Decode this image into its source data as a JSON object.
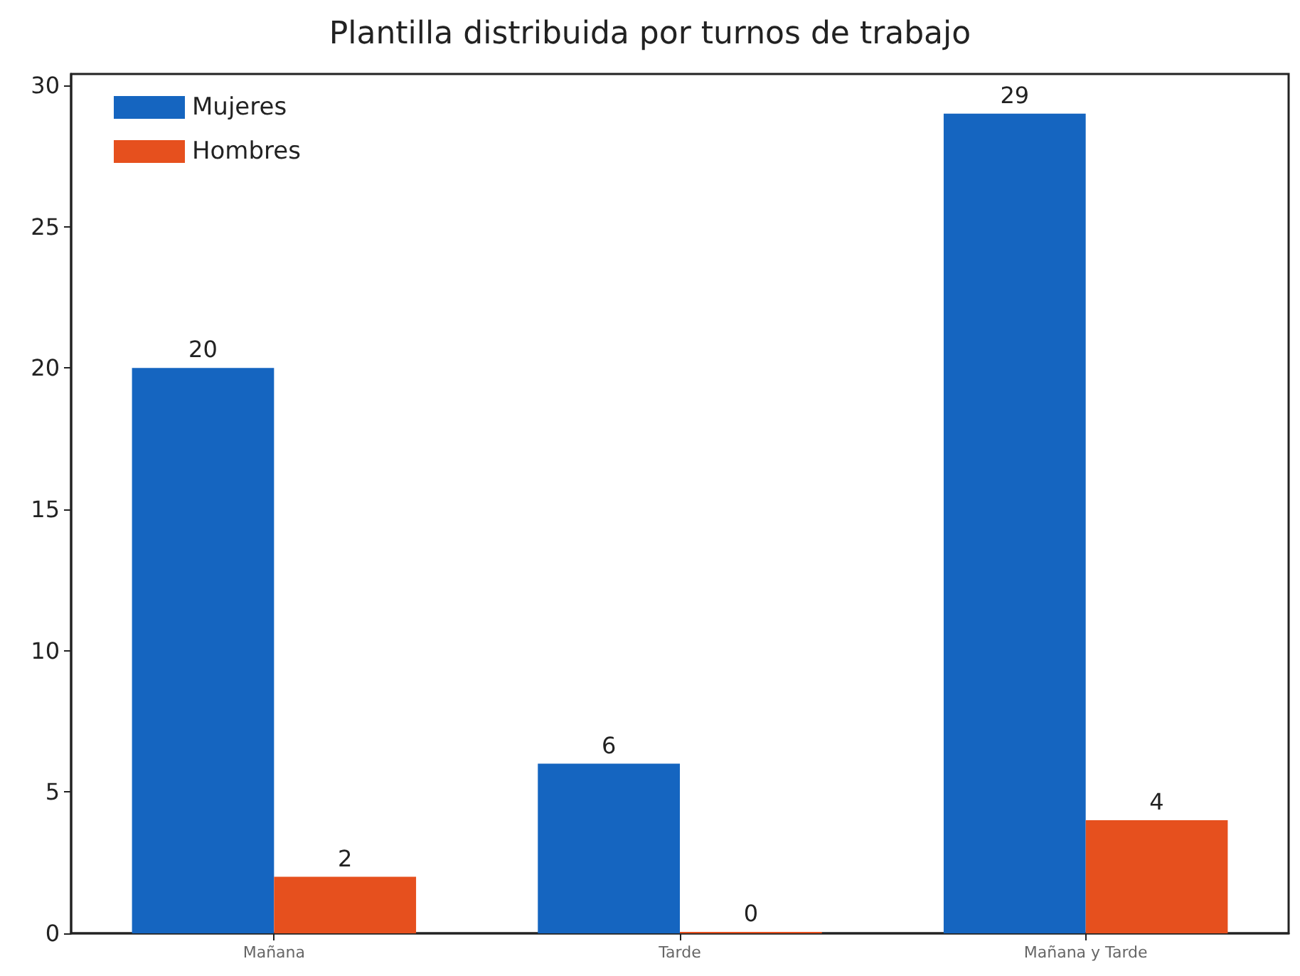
{
  "chart_data": {
    "type": "bar",
    "title": "Plantilla distribuida por turnos de trabajo",
    "categories": [
      "Mañana",
      "Tarde",
      "Mañana y Tarde"
    ],
    "series": [
      {
        "name": "Mujeres",
        "color": "#1565c0",
        "values": [
          20,
          6,
          29
        ]
      },
      {
        "name": "Hombres",
        "color": "#e6501e",
        "values": [
          2,
          0,
          4
        ]
      }
    ],
    "ylim": [
      0,
      30.4
    ],
    "yticks": [
      0,
      5,
      10,
      15,
      20,
      25,
      30
    ],
    "data_labels": true,
    "grid": false,
    "legend": "top left"
  }
}
